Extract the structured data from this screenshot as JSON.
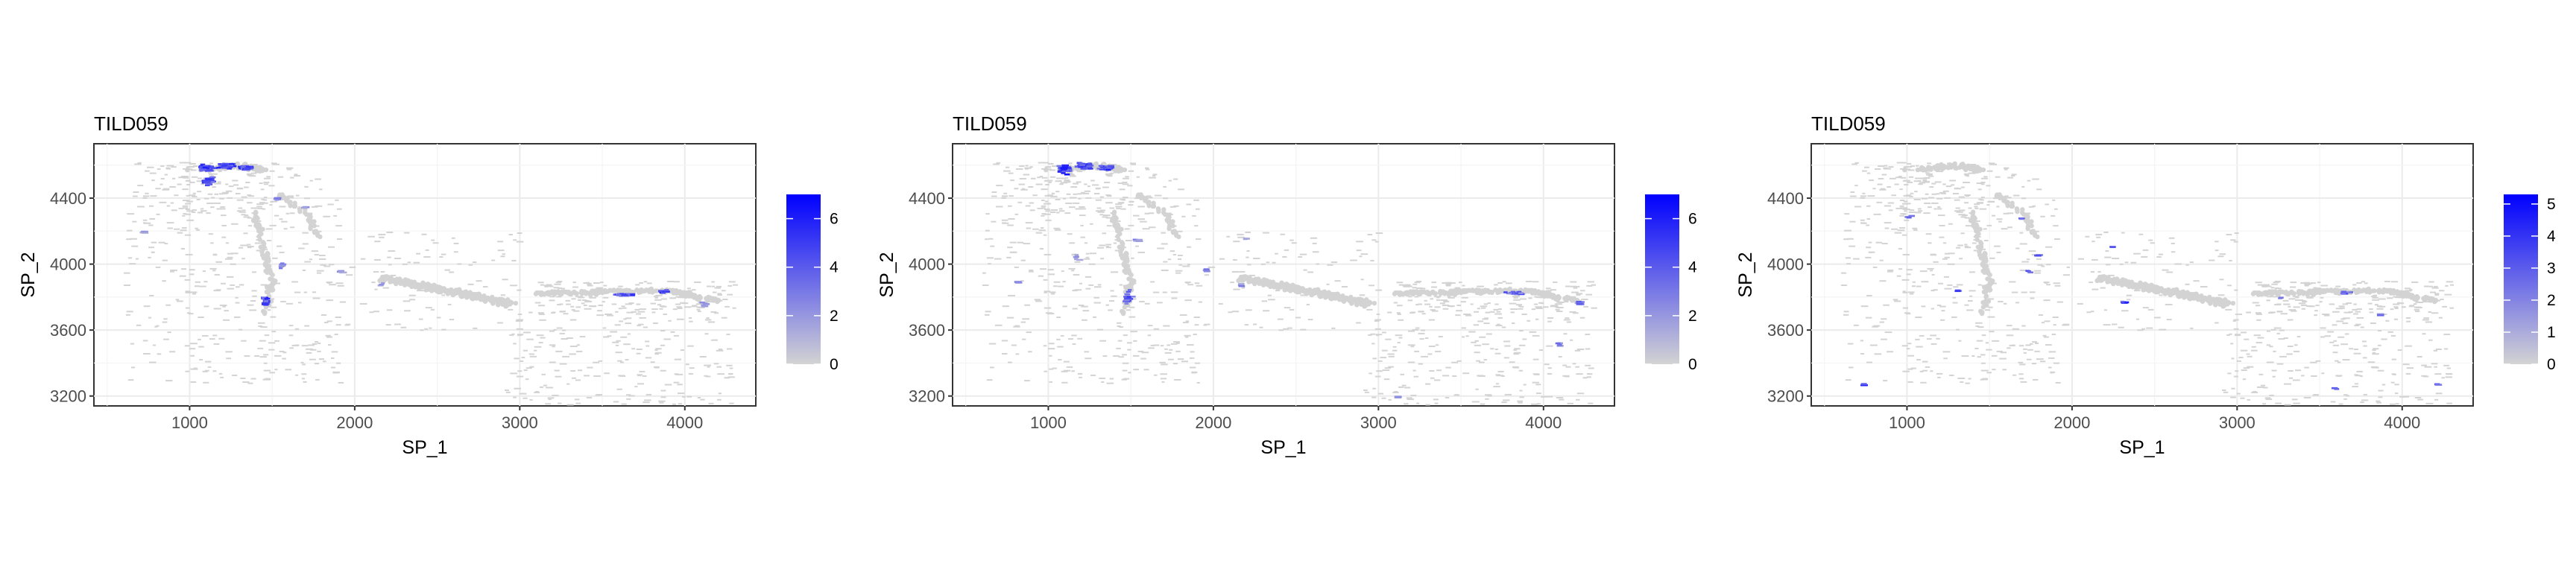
{
  "colors": {
    "low": "#d3d3d3",
    "high": "#0000ff"
  },
  "chart_data": [
    {
      "type": "scatter",
      "title": "TILD059",
      "xlabel": "SP_1",
      "ylabel": "SP_2",
      "xlim": [
        420,
        4430
      ],
      "ylim": [
        3140,
        4730
      ],
      "x_ticks": [
        1000,
        2000,
        3000,
        4000
      ],
      "y_ticks": [
        3200,
        3600,
        4000,
        4400
      ],
      "grid": true,
      "legend": {
        "placement": "right",
        "breaks": [
          0,
          2,
          4,
          6
        ],
        "range": [
          0,
          7.0
        ]
      },
      "hotspots": [
        {
          "x": 1080,
          "y": 4590,
          "v": 6.8,
          "sx": 40,
          "sy": 25,
          "n": 40
        },
        {
          "x": 1200,
          "y": 4600,
          "v": 6.5,
          "sx": 50,
          "sy": 20,
          "n": 40
        },
        {
          "x": 1320,
          "y": 4590,
          "v": 6.2,
          "sx": 45,
          "sy": 15,
          "n": 35
        },
        {
          "x": 1100,
          "y": 4510,
          "v": 5.5,
          "sx": 30,
          "sy": 30,
          "n": 25
        },
        {
          "x": 1440,
          "y": 3780,
          "v": 5.8,
          "sx": 15,
          "sy": 35,
          "n": 22
        },
        {
          "x": 1510,
          "y": 4400,
          "v": 3.0,
          "sx": 15,
          "sy": 10,
          "n": 5
        },
        {
          "x": 1680,
          "y": 4350,
          "v": 2.5,
          "sx": 10,
          "sy": 10,
          "n": 4
        },
        {
          "x": 3620,
          "y": 3820,
          "v": 5.5,
          "sx": 80,
          "sy": 10,
          "n": 30
        },
        {
          "x": 3850,
          "y": 3840,
          "v": 6.5,
          "sx": 30,
          "sy": 10,
          "n": 15
        },
        {
          "x": 4100,
          "y": 3760,
          "v": 3.0,
          "sx": 20,
          "sy": 20,
          "n": 6
        },
        {
          "x": 700,
          "y": 4200,
          "v": 2.0,
          "sx": 15,
          "sy": 15,
          "n": 3
        },
        {
          "x": 1550,
          "y": 4000,
          "v": 3.5,
          "sx": 20,
          "sy": 20,
          "n": 6
        },
        {
          "x": 1900,
          "y": 3960,
          "v": 2.5,
          "sx": 30,
          "sy": 10,
          "n": 4
        },
        {
          "x": 2150,
          "y": 3880,
          "v": 2.5,
          "sx": 10,
          "sy": 10,
          "n": 3
        }
      ]
    },
    {
      "type": "scatter",
      "title": "TILD059",
      "xlabel": "SP_1",
      "ylabel": "SP_2",
      "xlim": [
        420,
        4430
      ],
      "ylim": [
        3140,
        4730
      ],
      "x_ticks": [
        1000,
        2000,
        3000,
        4000
      ],
      "y_ticks": [
        3200,
        3600,
        4000,
        4400
      ],
      "grid": true,
      "legend": {
        "placement": "right",
        "breaks": [
          0,
          2,
          4,
          6
        ],
        "range": [
          0,
          7.0
        ]
      },
      "hotspots": [
        {
          "x": 1080,
          "y": 4580,
          "v": 6.7,
          "sx": 40,
          "sy": 30,
          "n": 35
        },
        {
          "x": 1210,
          "y": 4600,
          "v": 6.3,
          "sx": 50,
          "sy": 20,
          "n": 35
        },
        {
          "x": 1340,
          "y": 4590,
          "v": 6.0,
          "sx": 40,
          "sy": 15,
          "n": 25
        },
        {
          "x": 1470,
          "y": 3800,
          "v": 5.0,
          "sx": 20,
          "sy": 40,
          "n": 20
        },
        {
          "x": 1520,
          "y": 4150,
          "v": 3.5,
          "sx": 15,
          "sy": 20,
          "n": 6
        },
        {
          "x": 3800,
          "y": 3830,
          "v": 5.0,
          "sx": 60,
          "sy": 12,
          "n": 18
        },
        {
          "x": 4200,
          "y": 3770,
          "v": 4.0,
          "sx": 15,
          "sy": 20,
          "n": 8
        },
        {
          "x": 2150,
          "y": 3880,
          "v": 3.0,
          "sx": 10,
          "sy": 10,
          "n": 4
        },
        {
          "x": 1940,
          "y": 3970,
          "v": 3.5,
          "sx": 10,
          "sy": 10,
          "n": 4
        },
        {
          "x": 2180,
          "y": 4160,
          "v": 3.0,
          "sx": 10,
          "sy": 10,
          "n": 3
        },
        {
          "x": 3100,
          "y": 3200,
          "v": 3.0,
          "sx": 10,
          "sy": 10,
          "n": 3
        },
        {
          "x": 4080,
          "y": 3520,
          "v": 3.5,
          "sx": 15,
          "sy": 15,
          "n": 4
        },
        {
          "x": 800,
          "y": 3900,
          "v": 3.0,
          "sx": 10,
          "sy": 10,
          "n": 3
        },
        {
          "x": 1150,
          "y": 4050,
          "v": 2.5,
          "sx": 30,
          "sy": 30,
          "n": 5
        }
      ]
    },
    {
      "type": "scatter",
      "title": "TILD059",
      "xlabel": "SP_1",
      "ylabel": "SP_2",
      "xlim": [
        420,
        4430
      ],
      "ylim": [
        3140,
        4730
      ],
      "x_ticks": [
        1000,
        2000,
        3000,
        4000
      ],
      "y_ticks": [
        3200,
        3600,
        4000,
        4400
      ],
      "grid": true,
      "legend": {
        "placement": "right",
        "breaks": [
          0,
          1,
          2,
          3,
          4,
          5
        ],
        "range": [
          0,
          5.3
        ]
      },
      "hotspots": [
        {
          "x": 720,
          "y": 3280,
          "v": 5.0,
          "sx": 10,
          "sy": 8,
          "n": 2
        },
        {
          "x": 1680,
          "y": 4280,
          "v": 4.5,
          "sx": 10,
          "sy": 10,
          "n": 2
        },
        {
          "x": 1290,
          "y": 3840,
          "v": 4.0,
          "sx": 15,
          "sy": 15,
          "n": 3
        },
        {
          "x": 1720,
          "y": 3960,
          "v": 3.5,
          "sx": 15,
          "sy": 15,
          "n": 3
        },
        {
          "x": 1780,
          "y": 4060,
          "v": 3.5,
          "sx": 10,
          "sy": 10,
          "n": 3
        },
        {
          "x": 2230,
          "y": 4110,
          "v": 4.0,
          "sx": 10,
          "sy": 10,
          "n": 2
        },
        {
          "x": 2290,
          "y": 3770,
          "v": 4.5,
          "sx": 30,
          "sy": 8,
          "n": 4
        },
        {
          "x": 3250,
          "y": 3800,
          "v": 3.5,
          "sx": 15,
          "sy": 10,
          "n": 2
        },
        {
          "x": 3650,
          "y": 3830,
          "v": 3.5,
          "sx": 40,
          "sy": 10,
          "n": 6
        },
        {
          "x": 3580,
          "y": 3250,
          "v": 5.0,
          "sx": 10,
          "sy": 8,
          "n": 2
        },
        {
          "x": 4200,
          "y": 3280,
          "v": 4.5,
          "sx": 10,
          "sy": 8,
          "n": 2
        },
        {
          "x": 1000,
          "y": 4300,
          "v": 3.0,
          "sx": 20,
          "sy": 20,
          "n": 3
        },
        {
          "x": 3850,
          "y": 3700,
          "v": 3.0,
          "sx": 10,
          "sy": 10,
          "n": 2
        }
      ]
    }
  ]
}
